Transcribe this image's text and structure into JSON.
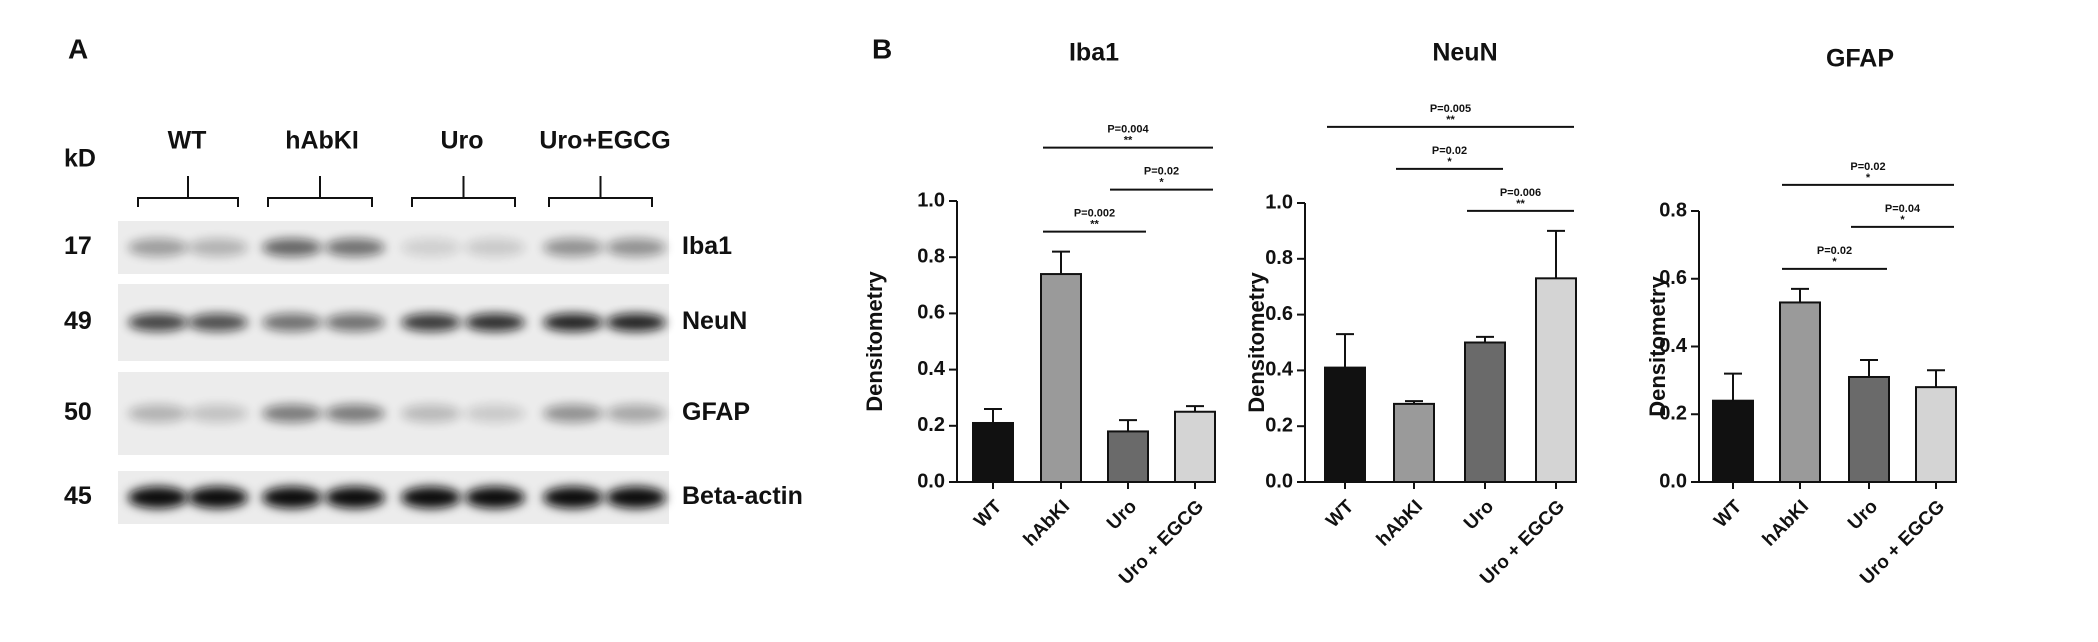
{
  "panel_a": {
    "label": "A",
    "unit": "kD",
    "groups": [
      "WT",
      "hAbKI",
      "Uro",
      "Uro+EGCG"
    ],
    "rows": [
      {
        "kd": 17,
        "name": "Iba1"
      },
      {
        "kd": 49,
        "name": "NeuN"
      },
      {
        "kd": 50,
        "name": "GFAP"
      },
      {
        "kd": 45,
        "name": "Beta-actin"
      }
    ]
  },
  "panel_b": {
    "label": "B"
  },
  "chart_data": [
    {
      "type": "bar",
      "title": "Iba1",
      "y_label": "Densitometry",
      "categories": [
        "WT",
        "hAbKI",
        "Uro",
        "Uro + EGCG"
      ],
      "values": [
        0.21,
        0.74,
        0.18,
        0.25
      ],
      "errors": [
        0.05,
        0.08,
        0.04,
        0.02
      ],
      "colors": [
        "#111111",
        "#9a9a9a",
        "#6a6a6a",
        "#d4d4d4"
      ],
      "ylim": [
        0,
        1.0
      ],
      "yticks": [
        {
          "value": 0,
          "label": "0.0"
        },
        {
          "value": 0.2,
          "label": "0.2"
        },
        {
          "value": 0.4,
          "label": "0.4"
        },
        {
          "value": 0.6,
          "label": "0.6"
        },
        {
          "value": 0.8,
          "label": "0.8"
        },
        {
          "value": 1.0,
          "label": "1.0"
        }
      ],
      "brackets": [
        {
          "pair": [
            1,
            3
          ],
          "text": "P=0.004",
          "stars": "**"
        },
        {
          "pair": [
            1,
            2
          ],
          "text": "P=0.002",
          "stars": "**"
        },
        {
          "pair": [
            2,
            3
          ],
          "text": "P=0.02",
          "stars": "*"
        }
      ]
    },
    {
      "type": "bar",
      "title": "NeuN",
      "y_label": "Densitometry",
      "categories": [
        "WT",
        "hAbKI",
        "Uro",
        "Uro + EGCG"
      ],
      "values": [
        0.41,
        0.28,
        0.5,
        0.73
      ],
      "errors": [
        0.12,
        0.01,
        0.02,
        0.17
      ],
      "colors": [
        "#111111",
        "#9a9a9a",
        "#6a6a6a",
        "#d4d4d4"
      ],
      "ylim": [
        0,
        1.0
      ],
      "yticks": [
        {
          "value": 0,
          "label": "0.0"
        },
        {
          "value": 0.2,
          "label": "0.2"
        },
        {
          "value": 0.4,
          "label": "0.4"
        },
        {
          "value": 0.6,
          "label": "0.6"
        },
        {
          "value": 0.8,
          "label": "0.8"
        },
        {
          "value": 1.0,
          "label": "1.0"
        }
      ],
      "brackets": [
        {
          "pair": [
            2,
            3
          ],
          "text": "P=0.006",
          "stars": "**"
        },
        {
          "pair": [
            0,
            3
          ],
          "text": "P=0.005",
          "stars": "**"
        },
        {
          "pair": [
            1,
            2
          ],
          "text": "P=0.02",
          "stars": "*"
        }
      ]
    },
    {
      "type": "bar",
      "title": "GFAP",
      "y_label": "Densitometry",
      "categories": [
        "WT",
        "hAbKI",
        "Uro",
        "Uro + EGCG"
      ],
      "values": [
        0.24,
        0.53,
        0.31,
        0.28
      ],
      "errors": [
        0.08,
        0.04,
        0.05,
        0.05
      ],
      "colors": [
        "#111111",
        "#9a9a9a",
        "#6a6a6a",
        "#d4d4d4"
      ],
      "ylim": [
        0,
        0.8
      ],
      "yticks": [
        {
          "value": 0,
          "label": "0.0"
        },
        {
          "value": 0.2,
          "label": "0.2"
        },
        {
          "value": 0.4,
          "label": "0.4"
        },
        {
          "value": 0.6,
          "label": "0.6"
        },
        {
          "value": 0.8,
          "label": "0.8"
        }
      ],
      "brackets": [
        {
          "pair": [
            1,
            3
          ],
          "text": "P=0.02",
          "stars": "*"
        },
        {
          "pair": [
            1,
            2
          ],
          "text": "P=0.02",
          "stars": "*"
        },
        {
          "pair": [
            2,
            3
          ],
          "text": "P=0.04",
          "stars": "*"
        }
      ]
    }
  ]
}
